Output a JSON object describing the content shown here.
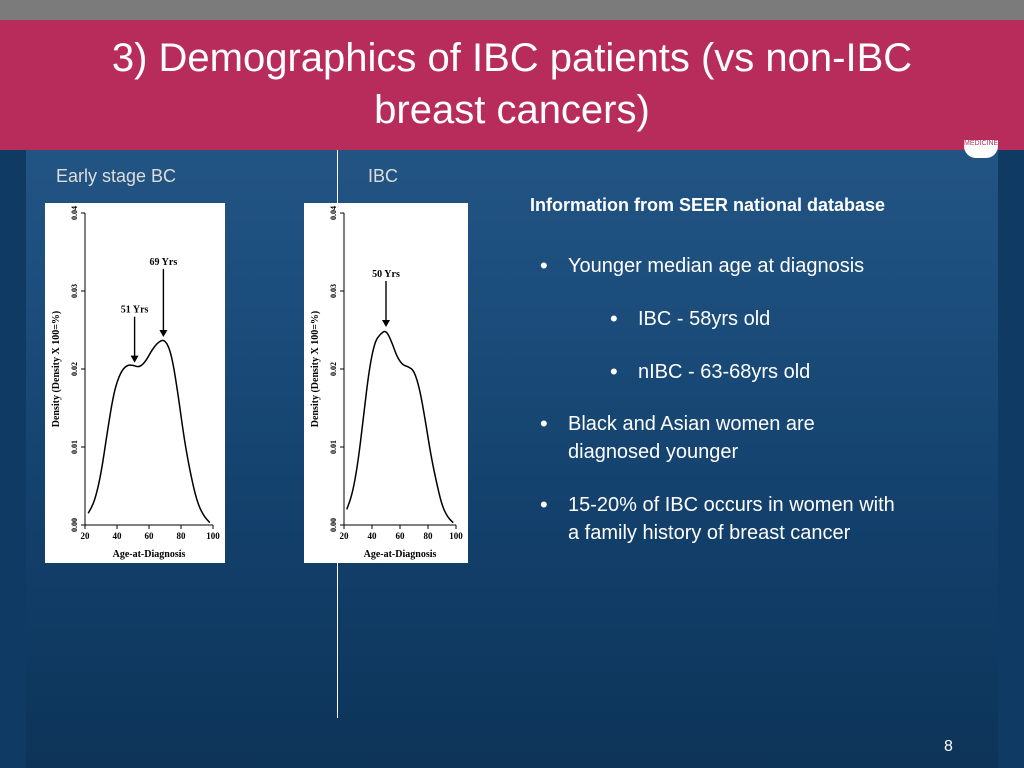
{
  "slide": {
    "title_line1": "3) Demographics of IBC patients (vs non-IBC",
    "title_line2": "breast cancers)",
    "logo_text": "MEDICINE",
    "page_number": "8"
  },
  "panels": {
    "left_label": "Early stage BC",
    "right_label": "IBC"
  },
  "info": {
    "heading": "Information from SEER national database",
    "bullets": [
      {
        "text": "Younger median age at diagnosis",
        "sub": [
          "IBC - 58yrs old",
          "nIBC - 63-68yrs old"
        ]
      },
      {
        "text_line1": "Black and Asian women are",
        "text_line2": "diagnosed younger"
      },
      {
        "text_line1": "15-20% of IBC occurs in women with",
        "text_line2": "a family history of breast cancer"
      }
    ],
    "bullet_glyph": "•"
  },
  "chart_data": [
    {
      "type": "line",
      "xlabel": "Age-at-Diagnosis",
      "ylabel": "Density (Density X 100=%)",
      "xlim": [
        20,
        100
      ],
      "ylim": [
        0,
        0.04
      ],
      "xticks": [
        20,
        40,
        60,
        80,
        100
      ],
      "yticks": [
        "0.00",
        "0.01",
        "0.02",
        "0.03",
        "0.04"
      ],
      "x": [
        22,
        26,
        30,
        34,
        38,
        42,
        46,
        50,
        54,
        58,
        62,
        66,
        70,
        74,
        78,
        82,
        86,
        90,
        94,
        98
      ],
      "y": [
        0.0015,
        0.003,
        0.0065,
        0.012,
        0.017,
        0.0195,
        0.0205,
        0.0205,
        0.0202,
        0.021,
        0.0225,
        0.0235,
        0.0238,
        0.022,
        0.017,
        0.011,
        0.0065,
        0.003,
        0.0012,
        0.0003
      ],
      "annotations": [
        {
          "text": "51 Yrs",
          "x": 51
        },
        {
          "text": "69 Yrs",
          "x": 69
        }
      ]
    },
    {
      "type": "line",
      "xlabel": "Age-at-Diagnosis",
      "ylabel": "Density (Density X 100=%)",
      "xlim": [
        20,
        100
      ],
      "ylim": [
        0,
        0.04
      ],
      "xticks": [
        20,
        40,
        60,
        80,
        100
      ],
      "yticks": [
        "0.00",
        "0.01",
        "0.02",
        "0.03",
        "0.04"
      ],
      "x": [
        22,
        26,
        30,
        34,
        38,
        42,
        46,
        50,
        54,
        58,
        62,
        66,
        70,
        74,
        78,
        82,
        86,
        90,
        94,
        98
      ],
      "y": [
        0.002,
        0.004,
        0.008,
        0.014,
        0.02,
        0.0235,
        0.0245,
        0.025,
        0.0235,
        0.0215,
        0.0205,
        0.0203,
        0.0198,
        0.0175,
        0.0135,
        0.009,
        0.0055,
        0.0025,
        0.001,
        0.0003
      ],
      "annotations": [
        {
          "text": "50 Yrs",
          "x": 50
        }
      ]
    }
  ]
}
